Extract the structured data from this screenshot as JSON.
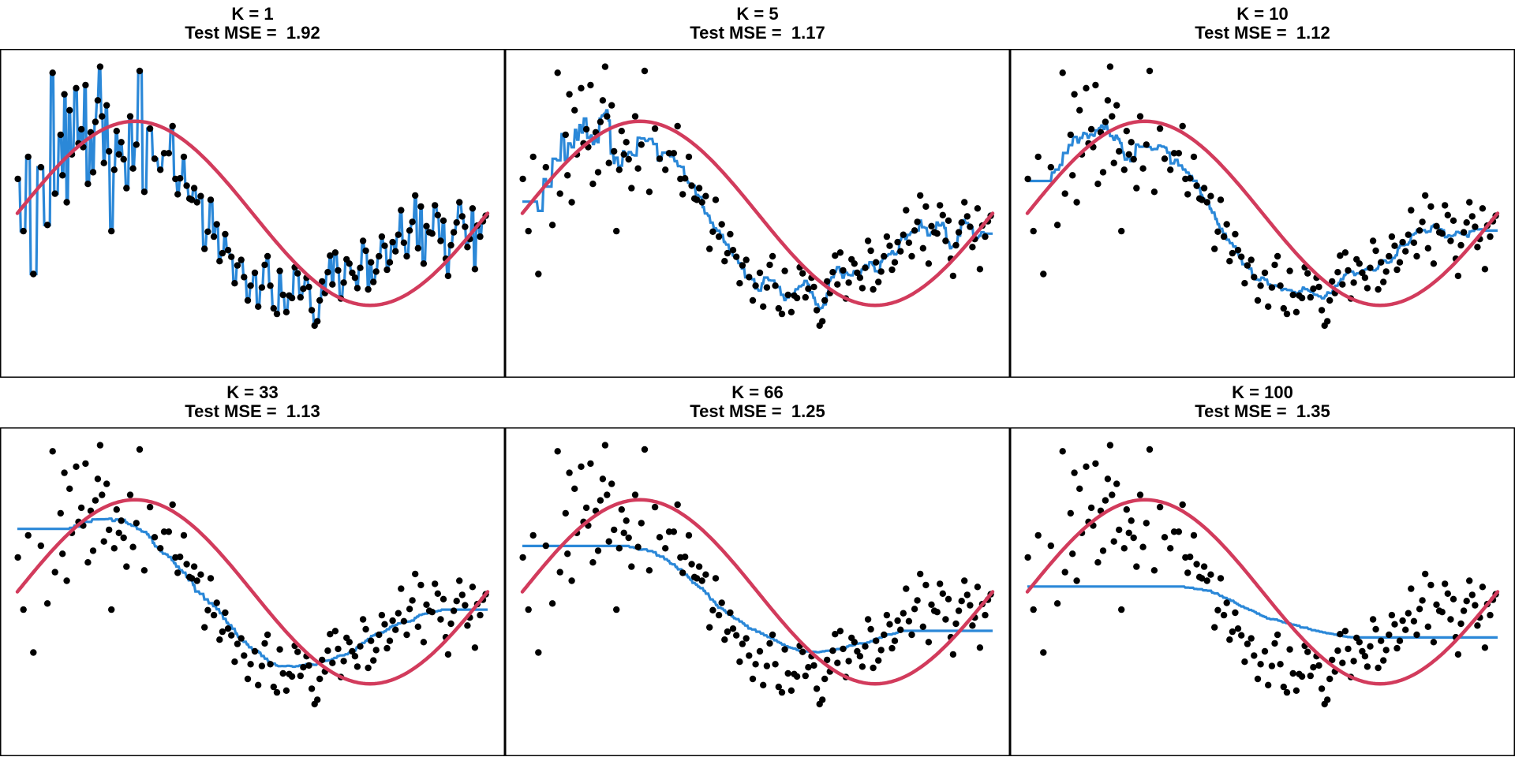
{
  "colors": {
    "points": "#000000",
    "knn_fit": "#2B88D8",
    "true_function": "#D23B5C",
    "frame": "#000000",
    "background": "#ffffff"
  },
  "chart_data": [
    {
      "type": "scatter",
      "k": 1,
      "title_line1": "K = 1",
      "title_line2": "Test MSE =  1.92",
      "test_mse": 1.92,
      "xlim": [
        0,
        1
      ],
      "ylim": [
        -2.5,
        2.5
      ],
      "series": [
        {
          "name": "observations",
          "kind": "scatter"
        },
        {
          "name": "KNN fit (K = 1)",
          "kind": "step"
        },
        {
          "name": "true function",
          "kind": "line"
        }
      ]
    },
    {
      "type": "scatter",
      "k": 5,
      "title_line1": "K = 5",
      "title_line2": "Test MSE =  1.17",
      "test_mse": 1.17,
      "xlim": [
        0,
        1
      ],
      "ylim": [
        -2.5,
        2.5
      ],
      "series": [
        {
          "name": "observations",
          "kind": "scatter"
        },
        {
          "name": "KNN fit (K = 5)",
          "kind": "step"
        },
        {
          "name": "true function",
          "kind": "line"
        }
      ]
    },
    {
      "type": "scatter",
      "k": 10,
      "title_line1": "K = 10",
      "title_line2": "Test MSE =  1.12",
      "test_mse": 1.12,
      "xlim": [
        0,
        1
      ],
      "ylim": [
        -2.5,
        2.5
      ],
      "series": [
        {
          "name": "observations",
          "kind": "scatter"
        },
        {
          "name": "KNN fit (K = 10)",
          "kind": "step"
        },
        {
          "name": "true function",
          "kind": "line"
        }
      ]
    },
    {
      "type": "scatter",
      "k": 33,
      "title_line1": "K = 33",
      "title_line2": "Test MSE =  1.13",
      "test_mse": 1.13,
      "xlim": [
        0,
        1
      ],
      "ylim": [
        -2.5,
        2.5
      ],
      "series": [
        {
          "name": "observations",
          "kind": "scatter"
        },
        {
          "name": "KNN fit (K = 33)",
          "kind": "step"
        },
        {
          "name": "true function",
          "kind": "line"
        }
      ]
    },
    {
      "type": "scatter",
      "k": 66,
      "title_line1": "K = 66",
      "title_line2": "Test MSE =  1.25",
      "test_mse": 1.25,
      "xlim": [
        0,
        1
      ],
      "ylim": [
        -2.5,
        2.5
      ],
      "series": [
        {
          "name": "observations",
          "kind": "scatter"
        },
        {
          "name": "KNN fit (K = 66)",
          "kind": "step"
        },
        {
          "name": "true function",
          "kind": "line"
        }
      ]
    },
    {
      "type": "scatter",
      "k": 100,
      "title_line1": "K = 100",
      "title_line2": "Test MSE =  1.35",
      "test_mse": 1.35,
      "xlim": [
        0,
        1
      ],
      "ylim": [
        -2.5,
        2.5
      ],
      "series": [
        {
          "name": "observations",
          "kind": "scatter"
        },
        {
          "name": "KNN fit (K = 100)",
          "kind": "step"
        },
        {
          "name": "true function",
          "kind": "line"
        }
      ]
    }
  ],
  "observations": {
    "x": [
      0.001,
      0.013,
      0.023,
      0.034,
      0.05,
      0.064,
      0.075,
      0.08,
      0.092,
      0.096,
      0.1,
      0.105,
      0.111,
      0.116,
      0.125,
      0.13,
      0.136,
      0.14,
      0.145,
      0.15,
      0.156,
      0.161,
      0.166,
      0.171,
      0.176,
      0.18,
      0.184,
      0.19,
      0.195,
      0.2,
      0.206,
      0.211,
      0.216,
      0.221,
      0.226,
      0.232,
      0.24,
      0.246,
      0.253,
      0.26,
      0.27,
      0.282,
      0.292,
      0.304,
      0.312,
      0.322,
      0.33,
      0.336,
      0.341,
      0.346,
      0.354,
      0.36,
      0.366,
      0.371,
      0.376,
      0.382,
      0.39,
      0.398,
      0.405,
      0.411,
      0.418,
      0.424,
      0.43,
      0.436,
      0.442,
      0.448,
      0.455,
      0.462,
      0.468,
      0.476,
      0.482,
      0.49,
      0.496,
      0.505,
      0.512,
      0.52,
      0.526,
      0.532,
      0.538,
      0.545,
      0.552,
      0.558,
      0.565,
      0.572,
      0.578,
      0.584,
      0.59,
      0.596,
      0.602,
      0.608,
      0.615,
      0.62,
      0.626,
      0.632,
      0.638,
      0.643,
      0.648,
      0.654,
      0.66,
      0.665,
      0.67,
      0.676,
      0.682,
      0.688,
      0.694,
      0.7,
      0.706,
      0.712,
      0.718,
      0.723,
      0.729,
      0.735,
      0.741,
      0.746,
      0.752,
      0.757,
      0.763,
      0.769,
      0.775,
      0.781,
      0.786,
      0.792,
      0.798,
      0.804,
      0.81,
      0.816,
      0.822,
      0.828,
      0.834,
      0.84,
      0.846,
      0.852,
      0.858,
      0.864,
      0.87,
      0.876,
      0.882,
      0.888,
      0.894,
      0.9,
      0.906,
      0.911,
      0.916,
      0.922,
      0.928,
      0.934,
      0.94,
      0.946,
      0.952,
      0.957,
      0.962,
      0.968,
      0.973,
      0.978,
      0.984,
      0.99,
      0.996
    ],
    "y": [
      0.56,
      -0.29,
      0.92,
      -0.99,
      0.75,
      -0.19,
      2.29,
      0.32,
      1.28,
      0.62,
      1.94,
      0.18,
      1.68,
      0.96,
      2.04,
      1.14,
      1.37,
      1.08,
      2.09,
      0.48,
      1.32,
      0.67,
      1.49,
      1.84,
      2.39,
      1.58,
      0.82,
      1.76,
      1.01,
      -0.29,
      0.71,
      1.34,
      0.96,
      1.16,
      0.88,
      0.41,
      1.58,
      0.73,
      1.12,
      2.32,
      0.35,
      1.38,
      0.89,
      0.71,
      0.98,
      0.98,
      1.42,
      0.56,
      0.31,
      0.57,
      0.92,
      0.45,
      0.24,
      0.22,
      0.41,
      0.18,
      0.28,
      -0.58,
      -0.3,
      0.22,
      -0.38,
      -0.18,
      -0.78,
      -0.65,
      -0.34,
      -0.6,
      -0.71,
      -1.14,
      -0.85,
      -0.76,
      -1.04,
      -1.42,
      -1.18,
      -0.97,
      -1.52,
      -1.21,
      -0.84,
      -0.7,
      -1.18,
      -1.55,
      -1.64,
      -0.94,
      -1.33,
      -1.61,
      -1.34,
      -1.38,
      -0.88,
      -0.98,
      -1.37,
      -1.23,
      -1.05,
      -1.2,
      -1.58,
      -1.83,
      -1.76,
      -1.42,
      -1.11,
      -1.3,
      -0.96,
      -0.69,
      -1.16,
      -0.64,
      -0.93,
      -1.39,
      -1.13,
      -0.75,
      -0.82,
      -0.97,
      -1.05,
      -1.22,
      -0.89,
      -0.45,
      -0.61,
      -1.24,
      -0.8,
      -1.12,
      -0.95,
      -0.7,
      -0.38,
      -0.53,
      -0.92,
      -0.8,
      -0.47,
      -0.62,
      -0.35,
      0.05,
      -0.48,
      -0.7,
      -0.28,
      -0.14,
      0.29,
      -0.57,
      0.11,
      -0.82,
      -0.21,
      -0.31,
      -0.33,
      0.13,
      -0.03,
      -0.45,
      -0.12,
      -0.74,
      -1.02,
      -0.52,
      -0.31,
      -0.15,
      0.18,
      -0.05,
      -0.22,
      -0.55,
      -0.42,
      0.08,
      -0.91,
      -0.2,
      -0.38,
      -0.13,
      -0.04
    ]
  }
}
